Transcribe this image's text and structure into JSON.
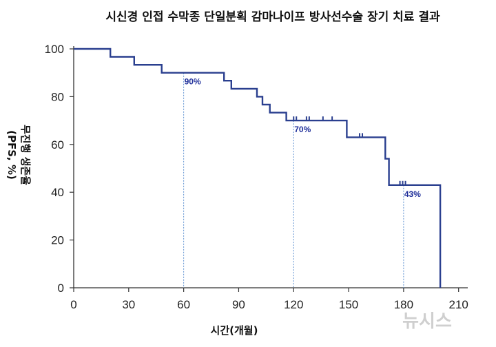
{
  "chart_data": {
    "type": "line",
    "title": "시신경 인접 수막종 단일분획 감마나이프 방사선수술 장기 치료 결과",
    "xlabel": "시간(개월)",
    "ylabel_line1": "무진행 생존율",
    "ylabel_line2": "(PFS, %)",
    "xlim": [
      0,
      215
    ],
    "ylim": [
      0,
      100
    ],
    "x_ticks": [
      0,
      30,
      60,
      90,
      120,
      150,
      180,
      210
    ],
    "y_ticks": [
      0,
      20,
      40,
      60,
      80,
      100
    ],
    "grid": false,
    "series": [
      {
        "style": "step",
        "color": "#2a3f8f",
        "points": [
          [
            0,
            100
          ],
          [
            20,
            100
          ],
          [
            20,
            96.7
          ],
          [
            33,
            96.7
          ],
          [
            33,
            93.3
          ],
          [
            48,
            93.3
          ],
          [
            48,
            90
          ],
          [
            82,
            90
          ],
          [
            82,
            86.7
          ],
          [
            86,
            86.7
          ],
          [
            86,
            83.3
          ],
          [
            100,
            83.3
          ],
          [
            100,
            80
          ],
          [
            103,
            80
          ],
          [
            103,
            76.7
          ],
          [
            107,
            76.7
          ],
          [
            107,
            73.3
          ],
          [
            116,
            73.3
          ],
          [
            116,
            70
          ],
          [
            149,
            70
          ],
          [
            149,
            63
          ],
          [
            170,
            63
          ],
          [
            170,
            54
          ],
          [
            172,
            54
          ],
          [
            172,
            43
          ],
          [
            200,
            43
          ],
          [
            200,
            0
          ]
        ],
        "censored": [
          {
            "x": 120,
            "y": 70
          },
          {
            "x": 121.5,
            "y": 70
          },
          {
            "x": 127,
            "y": 70
          },
          {
            "x": 128.5,
            "y": 70
          },
          {
            "x": 136,
            "y": 70
          },
          {
            "x": 141,
            "y": 70
          },
          {
            "x": 156,
            "y": 63
          },
          {
            "x": 157.5,
            "y": 63
          },
          {
            "x": 178,
            "y": 43
          },
          {
            "x": 179.5,
            "y": 43
          },
          {
            "x": 181,
            "y": 43
          }
        ]
      }
    ],
    "annotations": [
      {
        "x": 60,
        "y": 90,
        "text": "90%"
      },
      {
        "x": 120,
        "y": 70,
        "text": "70%"
      },
      {
        "x": 180,
        "y": 43,
        "text": "43%"
      }
    ]
  },
  "watermark": "뉴시스",
  "colors": {
    "line": "#2a3f8f",
    "annotation_text": "#1f2f9a",
    "guide": "#5b8fd0",
    "axis": "#333333"
  }
}
